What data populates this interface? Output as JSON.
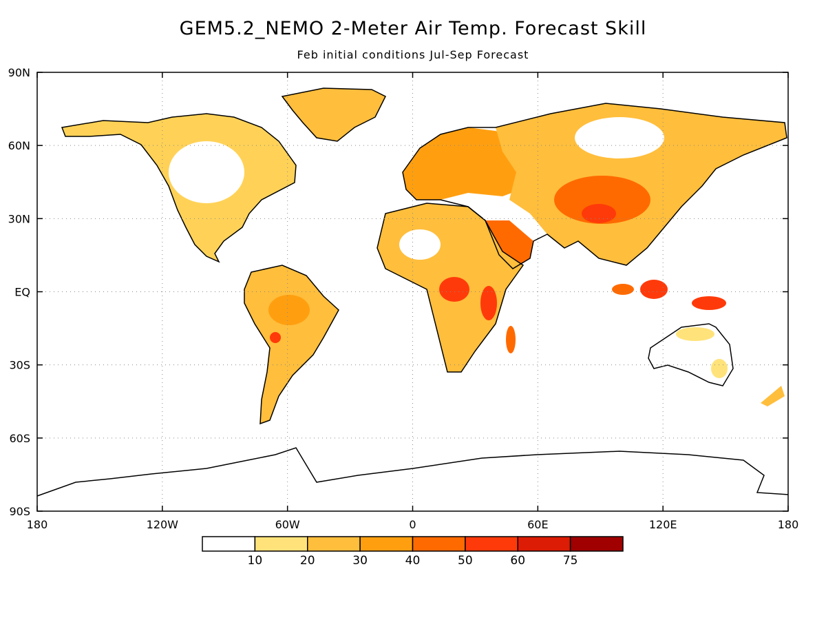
{
  "title": "GEM5.2_NEMO 2-Meter Air Temp. Forecast Skill",
  "subtitle": "Feb initial conditions   Jul-Sep Forecast",
  "map": {
    "lat_labels": [
      "90N",
      "60N",
      "30N",
      "EQ",
      "30S",
      "60S",
      "90S"
    ],
    "lat_values": [
      90,
      60,
      30,
      0,
      -30,
      -60,
      -90
    ],
    "lon_labels": [
      "180",
      "120W",
      "60W",
      "0",
      "60E",
      "120E",
      "180"
    ],
    "lon_values": [
      -180,
      -120,
      -60,
      0,
      60,
      120,
      180
    ],
    "gridlines": "dotted"
  },
  "colorbar": {
    "labels": [
      "10",
      "20",
      "30",
      "40",
      "50",
      "60",
      "75"
    ],
    "colors": [
      "#ffffff",
      "#ffe37a",
      "#ffbe3c",
      "#ff9f10",
      "#ff6a00",
      "#ff3a0a",
      "#dc1c04",
      "#a00000"
    ]
  }
}
